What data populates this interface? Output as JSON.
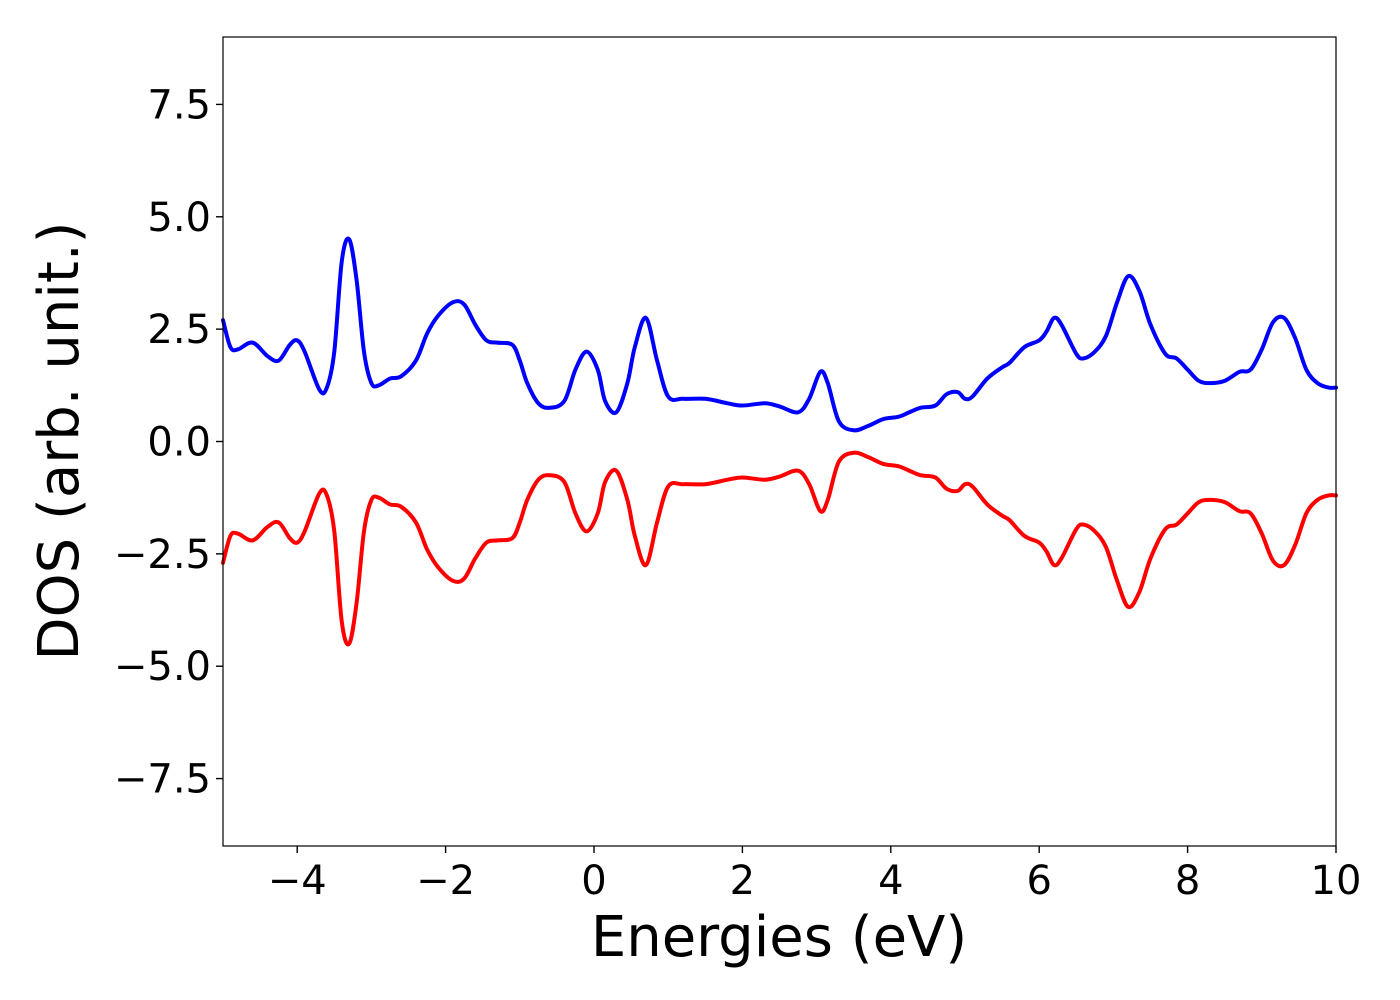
{
  "chart_data": {
    "type": "line",
    "title": "",
    "xlabel": "Energies (eV)",
    "ylabel": "DOS (arb. unit.)",
    "xlim": [
      -5,
      10
    ],
    "ylim": [
      -9,
      9
    ],
    "grid": false,
    "xticks": [
      -4,
      -2,
      0,
      2,
      4,
      6,
      8,
      10
    ],
    "xtick_labels": [
      "−4",
      "−2",
      "0",
      "2",
      "4",
      "6",
      "8",
      "10"
    ],
    "yticks": [
      -7.5,
      -5.0,
      -2.5,
      0.0,
      2.5,
      5.0,
      7.5
    ],
    "ytick_labels": [
      "−7.5",
      "−5.0",
      "−2.5",
      "0.0",
      "2.5",
      "5.0",
      "7.5"
    ],
    "colors": {
      "spin_up": "#0000ff",
      "spin_down": "#ff0000"
    },
    "series": [
      {
        "color": "#0000ff",
        "x": [
          -5.0,
          -4.9,
          -4.8,
          -4.6,
          -4.4,
          -4.25,
          -4.1,
          -4.0,
          -3.9,
          -3.7,
          -3.6,
          -3.5,
          -3.4,
          -3.3,
          -3.2,
          -3.1,
          -3.0,
          -2.9,
          -2.75,
          -2.6,
          -2.4,
          -2.25,
          -2.1,
          -1.9,
          -1.75,
          -1.6,
          -1.45,
          -1.3,
          -1.1,
          -1.0,
          -0.9,
          -0.75,
          -0.6,
          -0.4,
          -0.25,
          -0.1,
          0.05,
          0.15,
          0.3,
          0.45,
          0.55,
          0.7,
          0.85,
          1.0,
          1.2,
          1.5,
          1.8,
          2.0,
          2.3,
          2.5,
          2.75,
          2.9,
          3.05,
          3.15,
          3.3,
          3.5,
          3.7,
          3.9,
          4.1,
          4.25,
          4.4,
          4.6,
          4.75,
          4.9,
          5.0,
          5.1,
          5.3,
          5.5,
          5.6,
          5.8,
          6.0,
          6.1,
          6.2,
          6.3,
          6.5,
          6.6,
          6.75,
          6.9,
          7.05,
          7.2,
          7.35,
          7.5,
          7.7,
          7.85,
          8.0,
          8.15,
          8.3,
          8.5,
          8.7,
          8.85,
          9.0,
          9.15,
          9.3,
          9.45,
          9.6,
          9.75,
          9.9,
          10.0
        ],
        "y": [
          2.7,
          2.1,
          2.05,
          2.2,
          1.9,
          1.8,
          2.15,
          2.25,
          2.0,
          1.15,
          1.2,
          2.0,
          4.0,
          4.5,
          3.6,
          2.0,
          1.3,
          1.25,
          1.4,
          1.45,
          1.8,
          2.4,
          2.8,
          3.1,
          3.05,
          2.6,
          2.25,
          2.2,
          2.15,
          1.8,
          1.3,
          0.85,
          0.75,
          0.9,
          1.6,
          2.0,
          1.6,
          0.9,
          0.65,
          1.3,
          2.1,
          2.75,
          1.8,
          1.0,
          0.95,
          0.95,
          0.85,
          0.8,
          0.85,
          0.78,
          0.65,
          0.95,
          1.55,
          1.3,
          0.45,
          0.25,
          0.35,
          0.5,
          0.55,
          0.65,
          0.75,
          0.8,
          1.05,
          1.1,
          0.95,
          1.0,
          1.4,
          1.65,
          1.75,
          2.1,
          2.25,
          2.45,
          2.75,
          2.6,
          1.95,
          1.85,
          2.0,
          2.35,
          3.1,
          3.68,
          3.35,
          2.6,
          1.95,
          1.85,
          1.6,
          1.35,
          1.3,
          1.35,
          1.55,
          1.6,
          2.05,
          2.65,
          2.75,
          2.3,
          1.6,
          1.3,
          1.2,
          1.2
        ]
      },
      {
        "color": "#ff0000",
        "x": [
          -5.0,
          -4.9,
          -4.8,
          -4.6,
          -4.4,
          -4.25,
          -4.1,
          -4.0,
          -3.9,
          -3.7,
          -3.6,
          -3.5,
          -3.4,
          -3.3,
          -3.2,
          -3.1,
          -3.0,
          -2.9,
          -2.75,
          -2.6,
          -2.4,
          -2.25,
          -2.1,
          -1.9,
          -1.75,
          -1.6,
          -1.45,
          -1.3,
          -1.1,
          -1.0,
          -0.9,
          -0.75,
          -0.6,
          -0.4,
          -0.25,
          -0.1,
          0.05,
          0.15,
          0.3,
          0.45,
          0.55,
          0.7,
          0.85,
          1.0,
          1.2,
          1.5,
          1.8,
          2.0,
          2.3,
          2.5,
          2.75,
          2.9,
          3.05,
          3.15,
          3.3,
          3.5,
          3.7,
          3.9,
          4.1,
          4.25,
          4.4,
          4.6,
          4.75,
          4.9,
          5.0,
          5.1,
          5.3,
          5.5,
          5.6,
          5.8,
          6.0,
          6.1,
          6.2,
          6.3,
          6.5,
          6.6,
          6.75,
          6.9,
          7.05,
          7.2,
          7.35,
          7.5,
          7.7,
          7.85,
          8.0,
          8.15,
          8.3,
          8.5,
          8.7,
          8.85,
          9.0,
          9.15,
          9.3,
          9.45,
          9.6,
          9.75,
          9.9,
          10.0
        ],
        "y": [
          -2.7,
          -2.1,
          -2.05,
          -2.2,
          -1.9,
          -1.8,
          -2.15,
          -2.25,
          -2.0,
          -1.15,
          -1.2,
          -2.0,
          -4.0,
          -4.5,
          -3.6,
          -2.0,
          -1.3,
          -1.25,
          -1.4,
          -1.45,
          -1.8,
          -2.4,
          -2.8,
          -3.1,
          -3.05,
          -2.6,
          -2.25,
          -2.2,
          -2.15,
          -1.8,
          -1.3,
          -0.85,
          -0.75,
          -0.9,
          -1.6,
          -2.0,
          -1.6,
          -0.9,
          -0.65,
          -1.3,
          -2.1,
          -2.75,
          -1.8,
          -1.0,
          -0.95,
          -0.95,
          -0.85,
          -0.8,
          -0.85,
          -0.78,
          -0.65,
          -0.95,
          -1.55,
          -1.3,
          -0.45,
          -0.25,
          -0.35,
          -0.5,
          -0.55,
          -0.65,
          -0.75,
          -0.8,
          -1.05,
          -1.1,
          -0.95,
          -1.0,
          -1.4,
          -1.65,
          -1.75,
          -2.1,
          -2.25,
          -2.45,
          -2.75,
          -2.6,
          -1.95,
          -1.85,
          -2.0,
          -2.35,
          -3.1,
          -3.68,
          -3.35,
          -2.6,
          -1.95,
          -1.85,
          -1.6,
          -1.35,
          -1.3,
          -1.35,
          -1.55,
          -1.6,
          -2.05,
          -2.65,
          -2.75,
          -2.3,
          -1.6,
          -1.3,
          -1.2,
          -1.2
        ]
      }
    ]
  }
}
